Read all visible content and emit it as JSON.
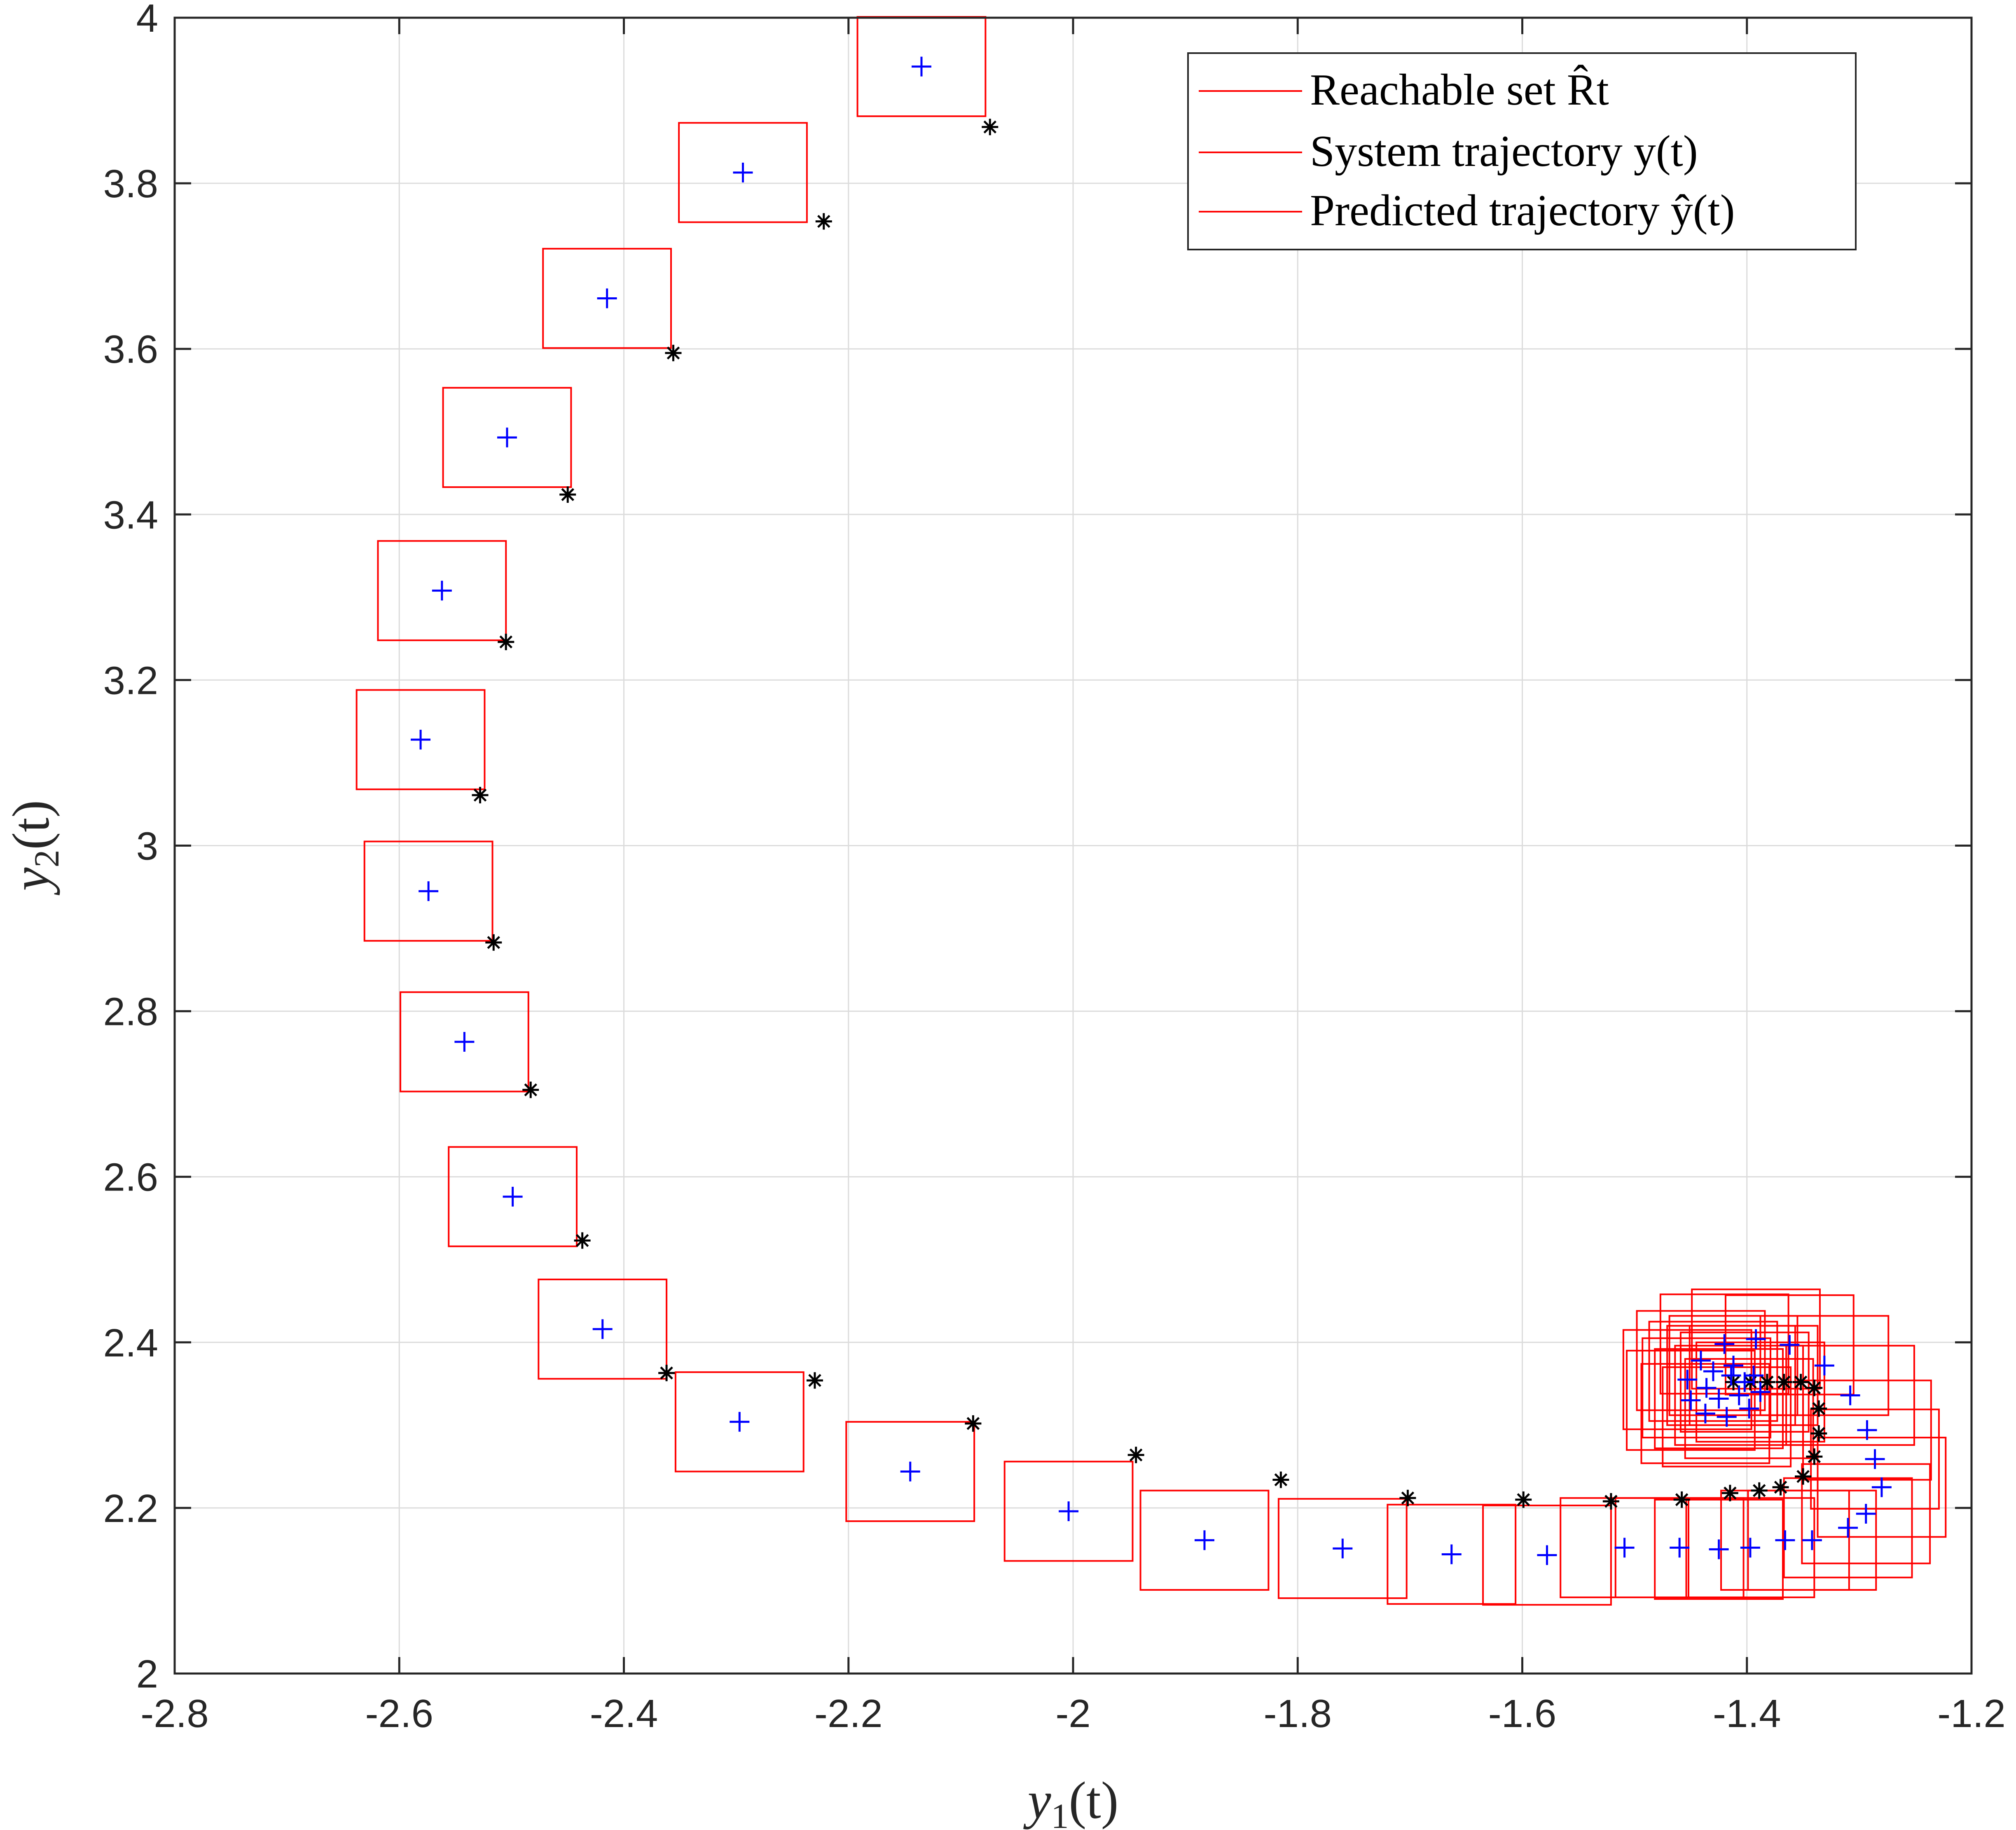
{
  "chart_data": {
    "type": "scatter",
    "xlabel": "y1(t)",
    "ylabel": "y2(t)",
    "xlim": [
      -2.8,
      -1.2
    ],
    "ylim": [
      2,
      4
    ],
    "xticks": [
      "-2.8",
      "-2.6",
      "-2.4",
      "-2.2",
      "-2",
      "-1.8",
      "-1.6",
      "-1.4",
      "-1.2"
    ],
    "yticks": [
      "2",
      "2.2",
      "2.4",
      "2.6",
      "2.8",
      "3",
      "3.2",
      "3.4",
      "3.6",
      "3.8",
      "4"
    ],
    "grid": true,
    "legend_position": "top-right",
    "legend": [
      {
        "label": "Reachable set R̂t",
        "color": "#ff0000"
      },
      {
        "label": "System trajectory y(t)",
        "color": "#ff0000"
      },
      {
        "label": "Predicted trajectory ŷ(t)",
        "color": "#ff0000"
      }
    ],
    "colors": {
      "reachable_set": "#ff0000",
      "system_trajectory": "#000000",
      "predicted_trajectory": "#0000ff",
      "grid": "#dcdcdc"
    },
    "box_half_width": 0.057,
    "box_half_height": 0.06,
    "predicted": [
      [
        -2.135,
        3.941
      ],
      [
        -2.294,
        3.813
      ],
      [
        -2.415,
        3.661
      ],
      [
        -2.504,
        3.493
      ],
      [
        -2.562,
        3.308
      ],
      [
        -2.581,
        3.128
      ],
      [
        -2.574,
        2.945
      ],
      [
        -2.542,
        2.763
      ],
      [
        -2.499,
        2.576
      ],
      [
        -2.419,
        2.416
      ],
      [
        -2.297,
        2.304
      ],
      [
        -2.145,
        2.244
      ],
      [
        -2.004,
        2.196
      ],
      [
        -1.883,
        2.161
      ],
      [
        -1.76,
        2.151
      ],
      [
        -1.663,
        2.144
      ],
      [
        -1.578,
        2.143
      ],
      [
        -1.509,
        2.152
      ],
      [
        -1.46,
        2.152
      ],
      [
        -1.425,
        2.15
      ],
      [
        -1.397,
        2.152
      ],
      [
        -1.366,
        2.161
      ],
      [
        -1.342,
        2.161
      ],
      [
        -1.31,
        2.176
      ],
      [
        -1.294,
        2.193
      ],
      [
        -1.28,
        2.225
      ],
      [
        -1.286,
        2.259
      ],
      [
        -1.293,
        2.294
      ],
      [
        -1.308,
        2.336
      ],
      [
        -1.331,
        2.372
      ],
      [
        -1.362,
        2.397
      ],
      [
        -1.392,
        2.404
      ],
      [
        -1.42,
        2.398
      ],
      [
        -1.441,
        2.378
      ],
      [
        -1.453,
        2.355
      ],
      [
        -1.45,
        2.33
      ],
      [
        -1.437,
        2.314
      ],
      [
        -1.418,
        2.31
      ],
      [
        -1.398,
        2.32
      ],
      [
        -1.388,
        2.34
      ],
      [
        -1.394,
        2.36
      ],
      [
        -1.412,
        2.372
      ],
      [
        -1.43,
        2.365
      ],
      [
        -1.436,
        2.345
      ],
      [
        -1.425,
        2.332
      ],
      [
        -1.407,
        2.336
      ],
      [
        -1.402,
        2.352
      ],
      [
        -1.414,
        2.36
      ]
    ],
    "system": [
      [
        -2.074,
        3.868
      ],
      [
        -2.222,
        3.754
      ],
      [
        -2.356,
        3.595
      ],
      [
        -2.45,
        3.424
      ],
      [
        -2.505,
        3.246
      ],
      [
        -2.528,
        3.061
      ],
      [
        -2.516,
        2.883
      ],
      [
        -2.483,
        2.705
      ],
      [
        -2.437,
        2.523
      ],
      [
        -2.362,
        2.363
      ],
      [
        -2.23,
        2.354
      ],
      [
        -2.089,
        2.302
      ],
      [
        -1.944,
        2.264
      ],
      [
        -1.815,
        2.234
      ],
      [
        -1.702,
        2.212
      ],
      [
        -1.599,
        2.21
      ],
      [
        -1.521,
        2.208
      ],
      [
        -1.458,
        2.21
      ],
      [
        -1.415,
        2.218
      ],
      [
        -1.389,
        2.221
      ],
      [
        -1.37,
        2.225
      ],
      [
        -1.35,
        2.238
      ],
      [
        -1.34,
        2.262
      ],
      [
        -1.336,
        2.29
      ],
      [
        -1.336,
        2.32
      ],
      [
        -1.34,
        2.345
      ],
      [
        -1.352,
        2.352
      ],
      [
        -1.367,
        2.352
      ],
      [
        -1.382,
        2.352
      ],
      [
        -1.397,
        2.352
      ],
      [
        -1.412,
        2.352
      ]
    ]
  }
}
